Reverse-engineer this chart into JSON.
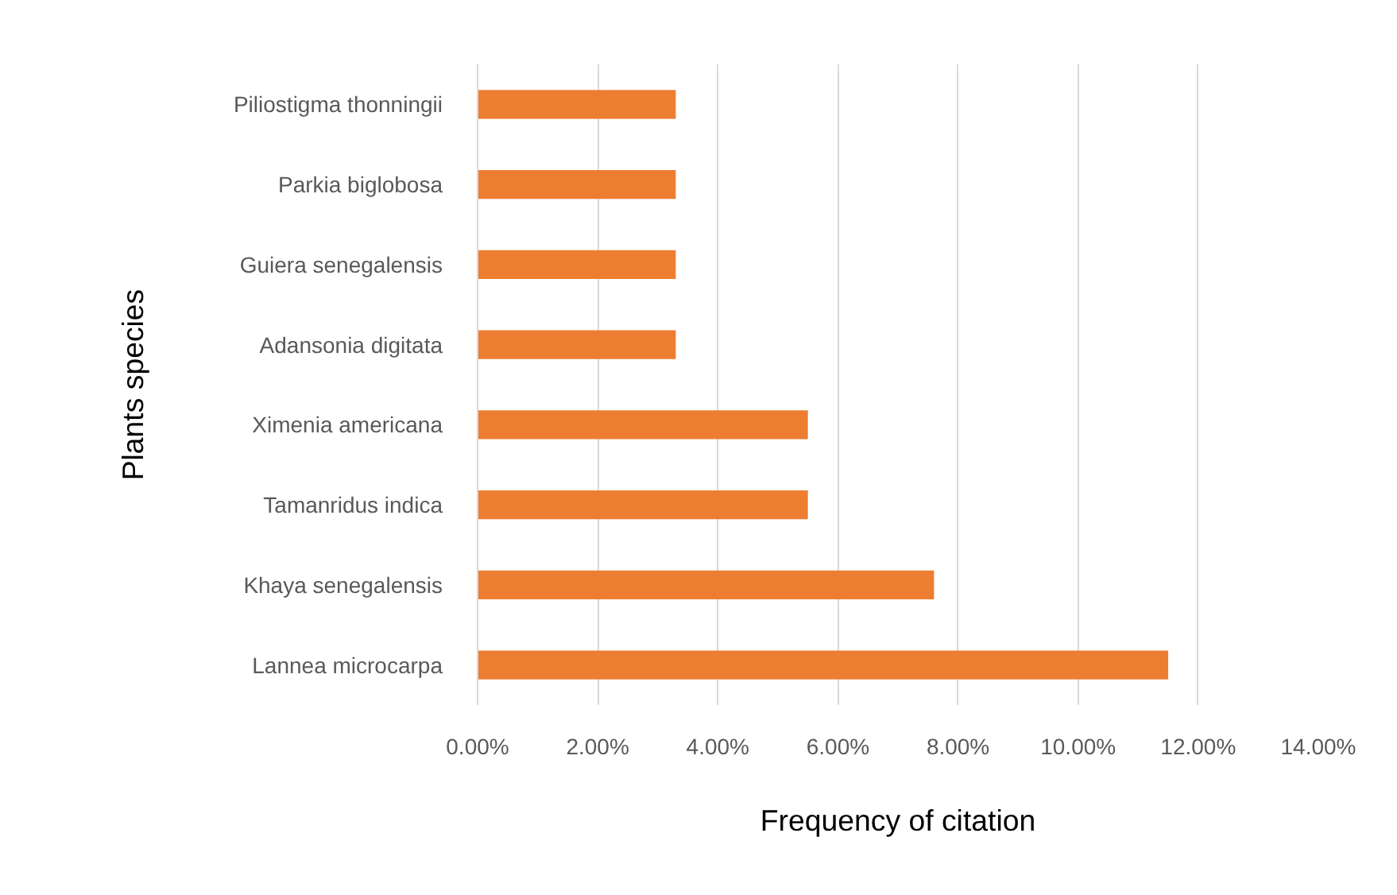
{
  "chart_data": {
    "type": "bar",
    "orientation": "horizontal",
    "xlabel": "Frequency of citation",
    "ylabel": "Plants species",
    "categories": [
      "Piliostigma thonningii",
      "Parkia biglobosa",
      "Guiera senegalensis",
      "Adansonia digitata",
      "Ximenia americana",
      "Tamanridus indica",
      "Khaya senegalensis",
      "Lannea microcarpa"
    ],
    "values": [
      3.3,
      3.3,
      3.3,
      3.3,
      5.5,
      5.5,
      7.6,
      11.5
    ],
    "color": "#ed7d31",
    "xlim": [
      0,
      14
    ],
    "xticks": [
      {
        "value": 0,
        "label": "0.00%"
      },
      {
        "value": 2,
        "label": "2.00%"
      },
      {
        "value": 4,
        "label": "4.00%"
      },
      {
        "value": 6,
        "label": "6.00%"
      },
      {
        "value": 8,
        "label": "8.00%"
      },
      {
        "value": 10,
        "label": "10.00%"
      },
      {
        "value": 12,
        "label": "12.00%"
      },
      {
        "value": 14,
        "label": "14.00%"
      }
    ],
    "grid": "x",
    "legend": false
  }
}
